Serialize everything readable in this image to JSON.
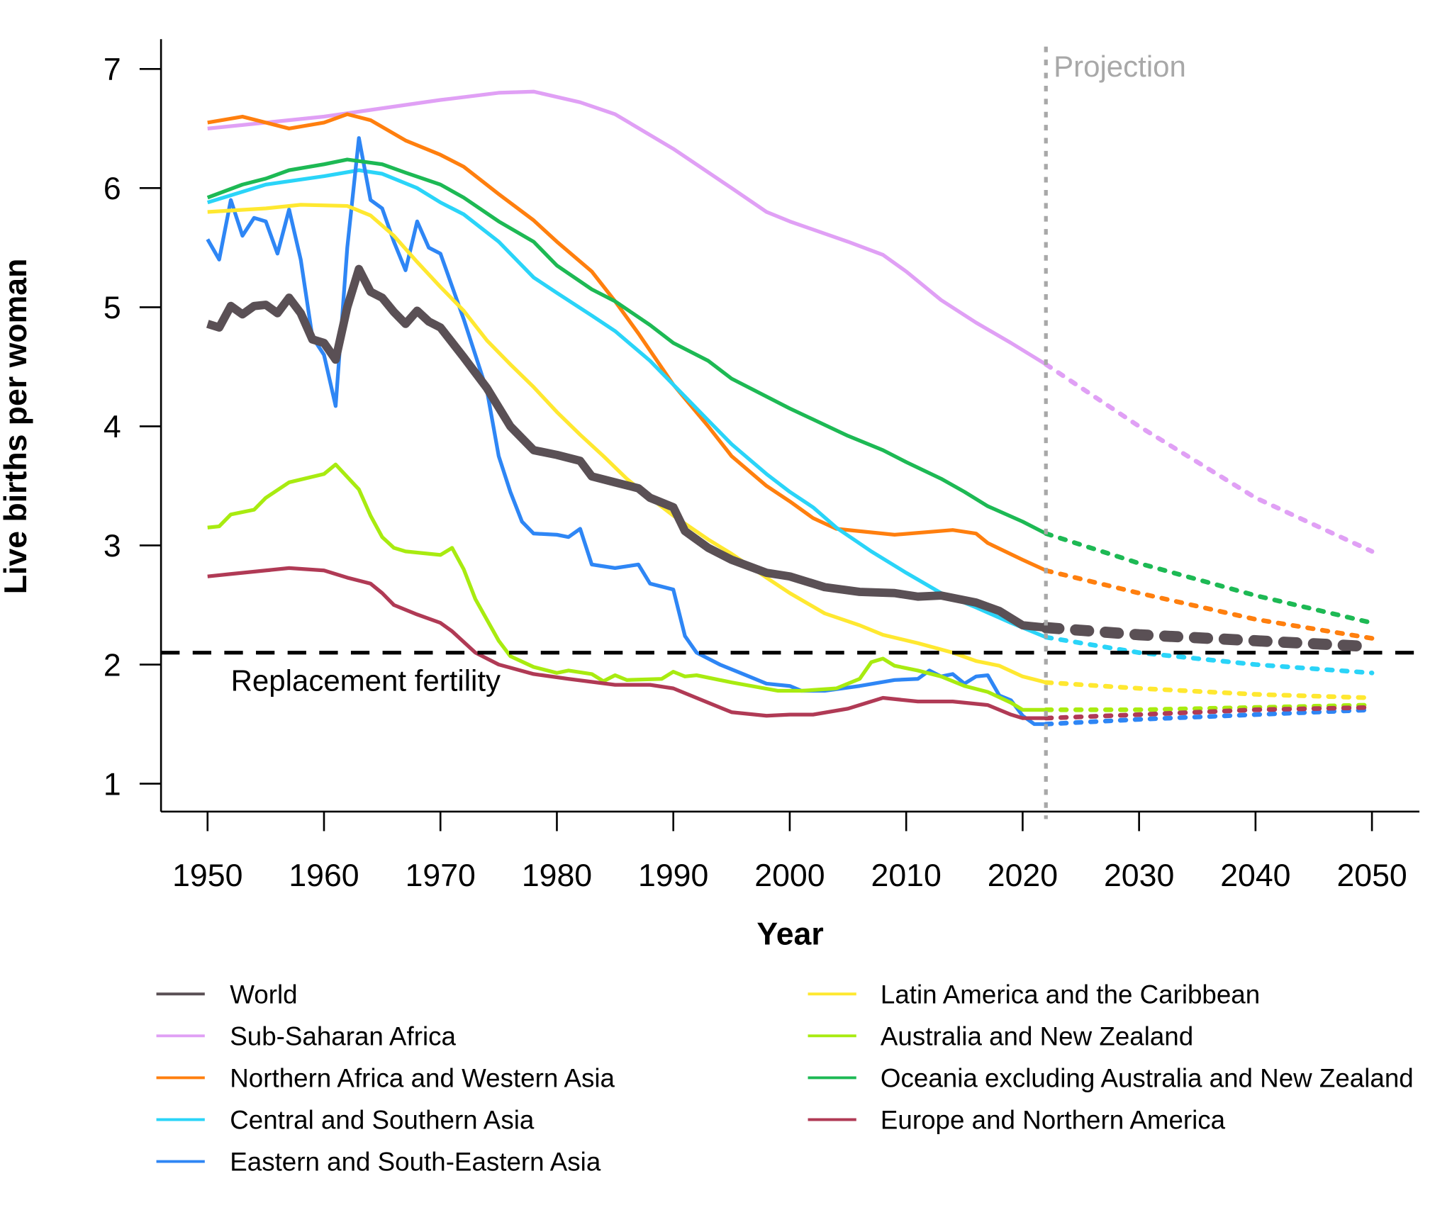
{
  "chart_data": {
    "type": "line",
    "title": "",
    "xlabel": "Year",
    "ylabel": "Live births per woman",
    "xlim": [
      1946,
      2054
    ],
    "ylim": [
      0.8,
      7.25
    ],
    "xticks": [
      1950,
      1960,
      1970,
      1980,
      1990,
      2000,
      2010,
      2020,
      2030,
      2040,
      2050
    ],
    "yticks": [
      1,
      2,
      3,
      4,
      5,
      6,
      7
    ],
    "grid": false,
    "legend_position": "bottom",
    "reference_line": {
      "y": 2.1,
      "label": "Replacement fertility",
      "style": "dashed",
      "color": "#000000"
    },
    "projection_line": {
      "x": 2022,
      "label": "Projection",
      "style": "dotted",
      "color": "#a8a8a8"
    },
    "series": [
      {
        "name": "World",
        "color": "#5a5055",
        "bold": true,
        "x": [
          1950,
          1951,
          1952,
          1953,
          1954,
          1955,
          1956,
          1957,
          1958,
          1959,
          1960,
          1961,
          1962,
          1963,
          1964,
          1965,
          1966,
          1967,
          1968,
          1969,
          1970,
          1972,
          1974,
          1976,
          1978,
          1980,
          1982,
          1983,
          1985,
          1987,
          1988,
          1990,
          1991,
          1993,
          1995,
          1998,
          2000,
          2003,
          2006,
          2009,
          2011,
          2013,
          2016,
          2018,
          2020,
          2022
        ],
        "y": [
          4.86,
          4.83,
          5.01,
          4.94,
          5.01,
          5.02,
          4.95,
          5.08,
          4.95,
          4.73,
          4.7,
          4.56,
          5.0,
          5.32,
          5.13,
          5.08,
          4.96,
          4.86,
          4.97,
          4.88,
          4.83,
          4.58,
          4.32,
          4.0,
          3.8,
          3.76,
          3.71,
          3.58,
          3.53,
          3.48,
          3.4,
          3.32,
          3.12,
          2.98,
          2.88,
          2.77,
          2.74,
          2.65,
          2.61,
          2.6,
          2.57,
          2.58,
          2.52,
          2.45,
          2.33,
          2.31
        ],
        "projection": {
          "x": [
            2022,
            2030,
            2040,
            2050
          ],
          "y": [
            2.31,
            2.25,
            2.2,
            2.15
          ]
        }
      },
      {
        "name": "Sub-Saharan Africa",
        "color": "#e0a0f5",
        "x": [
          1950,
          1960,
          1965,
          1970,
          1975,
          1978,
          1982,
          1985,
          1990,
          1995,
          1998,
          2000,
          2005,
          2008,
          2010,
          2013,
          2016,
          2019,
          2022
        ],
        "y": [
          6.5,
          6.6,
          6.67,
          6.74,
          6.8,
          6.81,
          6.72,
          6.62,
          6.33,
          6.0,
          5.8,
          5.72,
          5.55,
          5.44,
          5.3,
          5.06,
          4.87,
          4.7,
          4.52
        ],
        "projection": {
          "x": [
            2022,
            2030,
            2040,
            2050
          ],
          "y": [
            4.52,
            4.0,
            3.4,
            2.95
          ]
        }
      },
      {
        "name": "Northern Africa and Western Asia",
        "color": "#ff7f0e",
        "x": [
          1950,
          1953,
          1955,
          1957,
          1960,
          1962,
          1964,
          1967,
          1970,
          1972,
          1975,
          1978,
          1980,
          1983,
          1985,
          1987,
          1990,
          1993,
          1995,
          1998,
          2000,
          2002,
          2004,
          2009,
          2014,
          2016,
          2017,
          2020,
          2022
        ],
        "y": [
          6.55,
          6.6,
          6.55,
          6.5,
          6.55,
          6.62,
          6.57,
          6.4,
          6.28,
          6.18,
          5.95,
          5.73,
          5.55,
          5.3,
          5.05,
          4.78,
          4.35,
          4.0,
          3.75,
          3.5,
          3.37,
          3.23,
          3.14,
          3.09,
          3.13,
          3.1,
          3.02,
          2.88,
          2.79
        ],
        "projection": {
          "x": [
            2022,
            2030,
            2040,
            2050
          ],
          "y": [
            2.79,
            2.6,
            2.38,
            2.22
          ]
        }
      },
      {
        "name": "Central and Southern Asia",
        "color": "#2ad4f8",
        "x": [
          1950,
          1955,
          1960,
          1963,
          1965,
          1968,
          1970,
          1972,
          1975,
          1978,
          1980,
          1983,
          1985,
          1988,
          1990,
          1993,
          1995,
          1998,
          2000,
          2002,
          2004,
          2007,
          2010,
          2013,
          2016,
          2019,
          2022
        ],
        "y": [
          5.88,
          6.03,
          6.1,
          6.15,
          6.12,
          6.0,
          5.88,
          5.78,
          5.55,
          5.25,
          5.12,
          4.93,
          4.8,
          4.55,
          4.35,
          4.05,
          3.85,
          3.6,
          3.45,
          3.32,
          3.15,
          2.95,
          2.77,
          2.6,
          2.48,
          2.35,
          2.23
        ],
        "projection": {
          "x": [
            2022,
            2030,
            2040,
            2050
          ],
          "y": [
            2.23,
            2.1,
            2.0,
            1.93
          ]
        }
      },
      {
        "name": "Eastern and South-Eastern Asia",
        "color": "#2e86f5",
        "x": [
          1950,
          1951,
          1952,
          1953,
          1954,
          1955,
          1956,
          1957,
          1958,
          1959,
          1960,
          1961,
          1962,
          1963,
          1964,
          1965,
          1966,
          1967,
          1968,
          1969,
          1970,
          1972,
          1974,
          1975,
          1976,
          1977,
          1978,
          1980,
          1981,
          1982,
          1983,
          1985,
          1987,
          1988,
          1990,
          1991,
          1992,
          1994,
          1996,
          1998,
          2000,
          2001,
          2003,
          2006,
          2009,
          2011,
          2012,
          2013,
          2014,
          2015,
          2016,
          2017,
          2018,
          2019,
          2020,
          2021,
          2022
        ],
        "y": [
          5.57,
          5.4,
          5.9,
          5.6,
          5.75,
          5.72,
          5.45,
          5.82,
          5.4,
          4.75,
          4.6,
          4.17,
          5.5,
          6.42,
          5.9,
          5.83,
          5.55,
          5.31,
          5.72,
          5.5,
          5.45,
          4.9,
          4.3,
          3.75,
          3.45,
          3.2,
          3.1,
          3.09,
          3.07,
          3.14,
          2.84,
          2.81,
          2.84,
          2.68,
          2.63,
          2.24,
          2.1,
          2.0,
          1.92,
          1.84,
          1.82,
          1.78,
          1.78,
          1.82,
          1.87,
          1.88,
          1.95,
          1.9,
          1.92,
          1.84,
          1.9,
          1.91,
          1.74,
          1.7,
          1.57,
          1.5,
          1.5
        ],
        "projection": {
          "x": [
            2022,
            2030,
            2040,
            2050
          ],
          "y": [
            1.5,
            1.54,
            1.58,
            1.62
          ]
        }
      },
      {
        "name": "Latin America and the Caribbean",
        "color": "#ffe830",
        "x": [
          1950,
          1955,
          1958,
          1962,
          1964,
          1966,
          1968,
          1970,
          1972,
          1974,
          1976,
          1978,
          1980,
          1982,
          1984,
          1986,
          1988,
          1990,
          1993,
          1995,
          1998,
          2000,
          2003,
          2006,
          2008,
          2011,
          2014,
          2016,
          2018,
          2020,
          2022
        ],
        "y": [
          5.8,
          5.83,
          5.86,
          5.85,
          5.77,
          5.6,
          5.38,
          5.17,
          4.97,
          4.72,
          4.52,
          4.33,
          4.12,
          3.93,
          3.75,
          3.56,
          3.4,
          3.25,
          3.05,
          2.93,
          2.73,
          2.6,
          2.43,
          2.33,
          2.25,
          2.18,
          2.1,
          2.03,
          1.99,
          1.9,
          1.85
        ],
        "projection": {
          "x": [
            2022,
            2030,
            2040,
            2050
          ],
          "y": [
            1.85,
            1.8,
            1.75,
            1.72
          ]
        }
      },
      {
        "name": "Australia and New Zealand",
        "color": "#a8eb10",
        "x": [
          1950,
          1951,
          1952,
          1954,
          1955,
          1957,
          1960,
          1961,
          1963,
          1964,
          1965,
          1966,
          1967,
          1970,
          1971,
          1972,
          1973,
          1975,
          1976,
          1978,
          1980,
          1981,
          1983,
          1984,
          1985,
          1986,
          1989,
          1990,
          1991,
          1992,
          1995,
          1999,
          2001,
          2004,
          2006,
          2007,
          2008,
          2009,
          2011,
          2013,
          2015,
          2017,
          2019,
          2020,
          2022
        ],
        "y": [
          3.15,
          3.16,
          3.26,
          3.3,
          3.4,
          3.53,
          3.6,
          3.68,
          3.47,
          3.25,
          3.07,
          2.98,
          2.95,
          2.92,
          2.98,
          2.8,
          2.55,
          2.2,
          2.07,
          1.98,
          1.93,
          1.95,
          1.92,
          1.86,
          1.91,
          1.87,
          1.88,
          1.94,
          1.9,
          1.91,
          1.85,
          1.78,
          1.78,
          1.8,
          1.88,
          2.02,
          2.05,
          1.99,
          1.95,
          1.9,
          1.82,
          1.77,
          1.68,
          1.62,
          1.62
        ],
        "projection": {
          "x": [
            2022,
            2030,
            2040,
            2050
          ],
          "y": [
            1.62,
            1.62,
            1.64,
            1.66
          ]
        }
      },
      {
        "name": "Oceania excluding Australia and New Zealand",
        "color": "#1db954",
        "x": [
          1950,
          1953,
          1955,
          1957,
          1960,
          1962,
          1965,
          1967,
          1970,
          1972,
          1975,
          1978,
          1980,
          1983,
          1985,
          1988,
          1990,
          1993,
          1995,
          2000,
          2005,
          2008,
          2010,
          2013,
          2015,
          2017,
          2020,
          2022
        ],
        "y": [
          5.92,
          6.03,
          6.08,
          6.15,
          6.2,
          6.24,
          6.2,
          6.13,
          6.03,
          5.92,
          5.72,
          5.55,
          5.35,
          5.15,
          5.05,
          4.85,
          4.7,
          4.55,
          4.4,
          4.15,
          3.92,
          3.8,
          3.7,
          3.56,
          3.45,
          3.33,
          3.2,
          3.1
        ],
        "projection": {
          "x": [
            2022,
            2030,
            2040,
            2050
          ],
          "y": [
            3.1,
            2.85,
            2.58,
            2.35
          ]
        }
      },
      {
        "name": "Europe and Northern America",
        "color": "#b03a55",
        "x": [
          1950,
          1952,
          1955,
          1957,
          1960,
          1962,
          1964,
          1965,
          1966,
          1968,
          1970,
          1971,
          1973,
          1975,
          1978,
          1981,
          1985,
          1988,
          1990,
          1993,
          1995,
          1998,
          2000,
          2002,
          2005,
          2008,
          2011,
          2014,
          2017,
          2019,
          2020,
          2022
        ],
        "y": [
          2.74,
          2.76,
          2.79,
          2.81,
          2.79,
          2.73,
          2.68,
          2.6,
          2.5,
          2.42,
          2.35,
          2.28,
          2.1,
          2.0,
          1.92,
          1.88,
          1.83,
          1.83,
          1.8,
          1.68,
          1.6,
          1.57,
          1.58,
          1.58,
          1.63,
          1.72,
          1.69,
          1.69,
          1.66,
          1.58,
          1.55,
          1.55
        ],
        "projection": {
          "x": [
            2022,
            2030,
            2040,
            2050
          ],
          "y": [
            1.55,
            1.58,
            1.62,
            1.64
          ]
        }
      }
    ],
    "legend_order": [
      [
        0,
        1,
        2,
        3,
        4
      ],
      [
        5,
        6,
        7,
        8
      ]
    ]
  }
}
